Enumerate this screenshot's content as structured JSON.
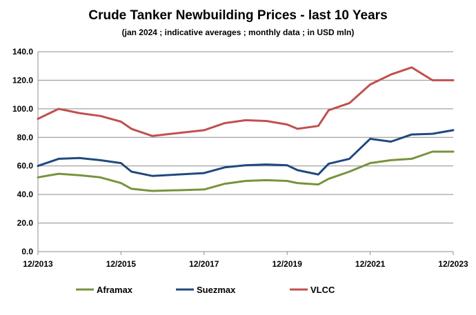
{
  "chart_data": {
    "type": "line",
    "title": "Crude Tanker Newbuilding Prices - last 10 Years",
    "subtitle": "(jan 2024 ; indicative averages ; monthly data ; in USD mln)",
    "xlabel": "",
    "ylabel": "",
    "ylim": [
      0,
      140
    ],
    "yticks": [
      "0.0",
      "20.0",
      "40.0",
      "60.0",
      "80.0",
      "100.0",
      "120.0",
      "140.0"
    ],
    "xlim": [
      "12/2013",
      "12/2023"
    ],
    "xticks": [
      "12/2013",
      "12/2015",
      "12/2017",
      "12/2019",
      "12/2021",
      "12/2023"
    ],
    "grid": true,
    "legend_position": "bottom",
    "series": [
      {
        "name": "Aframax",
        "color": "#77933c",
        "points": [
          [
            "12/2013",
            52
          ],
          [
            "06/2014",
            54.5
          ],
          [
            "12/2014",
            53.5
          ],
          [
            "06/2015",
            52
          ],
          [
            "12/2015",
            48
          ],
          [
            "03/2016",
            44
          ],
          [
            "09/2016",
            42.5
          ],
          [
            "12/2017",
            43.5
          ],
          [
            "06/2018",
            47.5
          ],
          [
            "12/2018",
            49.5
          ],
          [
            "06/2019",
            50
          ],
          [
            "12/2019",
            49.5
          ],
          [
            "03/2020",
            48
          ],
          [
            "09/2020",
            47
          ],
          [
            "12/2020",
            51
          ],
          [
            "06/2021",
            56
          ],
          [
            "12/2021",
            62
          ],
          [
            "06/2022",
            64
          ],
          [
            "12/2022",
            65
          ],
          [
            "06/2023",
            70
          ],
          [
            "12/2023",
            70
          ]
        ]
      },
      {
        "name": "Suezmax",
        "color": "#1f497d",
        "points": [
          [
            "12/2013",
            60
          ],
          [
            "06/2014",
            65
          ],
          [
            "12/2014",
            65.5
          ],
          [
            "06/2015",
            64
          ],
          [
            "12/2015",
            62
          ],
          [
            "03/2016",
            56
          ],
          [
            "09/2016",
            53
          ],
          [
            "12/2017",
            55
          ],
          [
            "06/2018",
            59
          ],
          [
            "12/2018",
            60.5
          ],
          [
            "06/2019",
            61
          ],
          [
            "12/2019",
            60.5
          ],
          [
            "03/2020",
            57
          ],
          [
            "09/2020",
            54
          ],
          [
            "12/2020",
            61.5
          ],
          [
            "06/2021",
            65
          ],
          [
            "12/2021",
            79
          ],
          [
            "06/2022",
            77
          ],
          [
            "12/2022",
            82
          ],
          [
            "06/2023",
            82.5
          ],
          [
            "12/2023",
            85
          ]
        ]
      },
      {
        "name": "VLCC",
        "color": "#c0504d",
        "points": [
          [
            "12/2013",
            93
          ],
          [
            "06/2014",
            100
          ],
          [
            "12/2014",
            97
          ],
          [
            "06/2015",
            95
          ],
          [
            "12/2015",
            91
          ],
          [
            "03/2016",
            86
          ],
          [
            "09/2016",
            81
          ],
          [
            "12/2017",
            85
          ],
          [
            "06/2018",
            90
          ],
          [
            "12/2018",
            92
          ],
          [
            "06/2019",
            91.5
          ],
          [
            "12/2019",
            89
          ],
          [
            "03/2020",
            86
          ],
          [
            "09/2020",
            88
          ],
          [
            "12/2020",
            99
          ],
          [
            "06/2021",
            104
          ],
          [
            "12/2021",
            117
          ],
          [
            "06/2022",
            124
          ],
          [
            "12/2022",
            129
          ],
          [
            "06/2023",
            120
          ],
          [
            "12/2023",
            120
          ]
        ]
      }
    ]
  }
}
